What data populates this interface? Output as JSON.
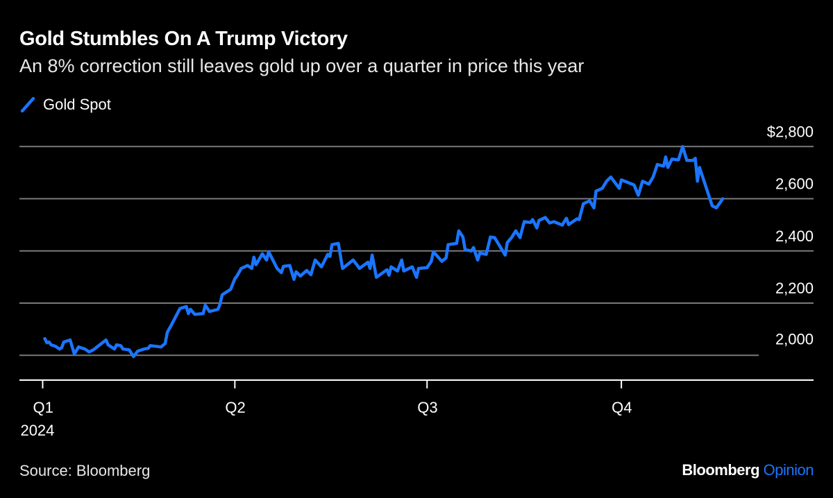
{
  "header": {
    "title": "Gold Stumbles On A Trump Victory",
    "subtitle": "An 8% correction still leaves gold up over a quarter in price this year"
  },
  "footer": {
    "source": "Source: Bloomberg",
    "brand": "Bloomberg",
    "brand_suffix": "Opinion"
  },
  "colors": {
    "line": "#1a75ff",
    "grid": "#7a7a7a",
    "axis": "#ffffff",
    "background": "#000000"
  },
  "chart_data": {
    "type": "line",
    "title": "Gold Stumbles On A Trump Victory",
    "subtitle": "An 8% correction still leaves gold up over a quarter in price this year",
    "legend_position": "top-left",
    "grid": true,
    "xlim": [
      "2023-12-21",
      "2024-12-31"
    ],
    "ylim": [
      1905,
      2830
    ],
    "y_axis_side": "right",
    "x_ticks": [
      {
        "date": "2024-01-01",
        "label": "Q1",
        "sublabel": "2024"
      },
      {
        "date": "2024-04-01",
        "label": "Q2"
      },
      {
        "date": "2024-07-01",
        "label": "Q3"
      },
      {
        "date": "2024-10-01",
        "label": "Q4"
      }
    ],
    "y_ticks": [
      {
        "value": 2000,
        "label": "2,000"
      },
      {
        "value": 2200,
        "label": "2,200"
      },
      {
        "value": 2400,
        "label": "2,400"
      },
      {
        "value": 2600,
        "label": "2,600"
      },
      {
        "value": 2800,
        "label": "$2,800"
      }
    ],
    "series": [
      {
        "name": "Gold Spot",
        "points": [
          [
            "2024-01-02",
            2064
          ],
          [
            "2024-01-03",
            2048
          ],
          [
            "2024-01-04",
            2051
          ],
          [
            "2024-01-05",
            2040
          ],
          [
            "2024-01-07",
            2035
          ],
          [
            "2024-01-09",
            2024
          ],
          [
            "2024-01-10",
            2029
          ],
          [
            "2024-01-11",
            2051
          ],
          [
            "2024-01-14",
            2059
          ],
          [
            "2024-01-16",
            2005
          ],
          [
            "2024-01-18",
            2032
          ],
          [
            "2024-01-21",
            2024
          ],
          [
            "2024-01-23",
            2013
          ],
          [
            "2024-01-25",
            2021
          ],
          [
            "2024-01-31",
            2059
          ],
          [
            "2024-02-01",
            2040
          ],
          [
            "2024-02-04",
            2024
          ],
          [
            "2024-02-05",
            2040
          ],
          [
            "2024-02-07",
            2037
          ],
          [
            "2024-02-08",
            2024
          ],
          [
            "2024-02-11",
            2021
          ],
          [
            "2024-02-13",
            1995
          ],
          [
            "2024-02-15",
            2016
          ],
          [
            "2024-02-18",
            2024
          ],
          [
            "2024-02-20",
            2027
          ],
          [
            "2024-02-21",
            2037
          ],
          [
            "2024-02-26",
            2032
          ],
          [
            "2024-02-28",
            2045
          ],
          [
            "2024-02-29",
            2088
          ],
          [
            "2024-03-02",
            2117
          ],
          [
            "2024-03-06",
            2179
          ],
          [
            "2024-03-09",
            2187
          ],
          [
            "2024-03-10",
            2160
          ],
          [
            "2024-03-11",
            2176
          ],
          [
            "2024-03-13",
            2157
          ],
          [
            "2024-03-17",
            2160
          ],
          [
            "2024-03-18",
            2192
          ],
          [
            "2024-03-20",
            2168
          ],
          [
            "2024-03-24",
            2176
          ],
          [
            "2024-03-25",
            2197
          ],
          [
            "2024-03-26",
            2232
          ],
          [
            "2024-03-30",
            2253
          ],
          [
            "2024-04-01",
            2293
          ],
          [
            "2024-04-02",
            2304
          ],
          [
            "2024-04-04",
            2333
          ],
          [
            "2024-04-07",
            2344
          ],
          [
            "2024-04-09",
            2333
          ],
          [
            "2024-04-10",
            2376
          ],
          [
            "2024-04-11",
            2347
          ],
          [
            "2024-04-14",
            2389
          ],
          [
            "2024-04-16",
            2365
          ],
          [
            "2024-04-17",
            2397
          ],
          [
            "2024-04-21",
            2333
          ],
          [
            "2024-04-23",
            2317
          ],
          [
            "2024-04-24",
            2341
          ],
          [
            "2024-04-27",
            2344
          ],
          [
            "2024-04-29",
            2291
          ],
          [
            "2024-04-30",
            2320
          ],
          [
            "2024-05-02",
            2304
          ],
          [
            "2024-05-05",
            2325
          ],
          [
            "2024-05-07",
            2309
          ],
          [
            "2024-05-09",
            2365
          ],
          [
            "2024-05-12",
            2339
          ],
          [
            "2024-05-15",
            2387
          ],
          [
            "2024-05-16",
            2379
          ],
          [
            "2024-05-17",
            2424
          ],
          [
            "2024-05-20",
            2429
          ],
          [
            "2024-05-22",
            2333
          ],
          [
            "2024-05-27",
            2365
          ],
          [
            "2024-05-29",
            2344
          ],
          [
            "2024-05-30",
            2333
          ],
          [
            "2024-06-03",
            2357
          ],
          [
            "2024-06-04",
            2333
          ],
          [
            "2024-06-05",
            2384
          ],
          [
            "2024-06-07",
            2299
          ],
          [
            "2024-06-12",
            2328
          ],
          [
            "2024-06-13",
            2307
          ],
          [
            "2024-06-14",
            2339
          ],
          [
            "2024-06-17",
            2323
          ],
          [
            "2024-06-19",
            2365
          ],
          [
            "2024-06-20",
            2323
          ],
          [
            "2024-06-24",
            2339
          ],
          [
            "2024-06-26",
            2299
          ],
          [
            "2024-06-27",
            2333
          ],
          [
            "2024-07-01",
            2336
          ],
          [
            "2024-07-03",
            2360
          ],
          [
            "2024-07-04",
            2397
          ],
          [
            "2024-07-08",
            2360
          ],
          [
            "2024-07-10",
            2373
          ],
          [
            "2024-07-11",
            2424
          ],
          [
            "2024-07-15",
            2429
          ],
          [
            "2024-07-16",
            2477
          ],
          [
            "2024-07-18",
            2453
          ],
          [
            "2024-07-19",
            2405
          ],
          [
            "2024-07-22",
            2400
          ],
          [
            "2024-07-23",
            2413
          ],
          [
            "2024-07-25",
            2365
          ],
          [
            "2024-07-26",
            2392
          ],
          [
            "2024-07-29",
            2387
          ],
          [
            "2024-07-31",
            2453
          ],
          [
            "2024-08-02",
            2451
          ],
          [
            "2024-08-07",
            2384
          ],
          [
            "2024-08-08",
            2432
          ],
          [
            "2024-08-10",
            2451
          ],
          [
            "2024-08-12",
            2477
          ],
          [
            "2024-08-14",
            2451
          ],
          [
            "2024-08-16",
            2512
          ],
          [
            "2024-08-19",
            2509
          ],
          [
            "2024-08-20",
            2520
          ],
          [
            "2024-08-22",
            2488
          ],
          [
            "2024-08-23",
            2517
          ],
          [
            "2024-08-26",
            2528
          ],
          [
            "2024-08-28",
            2507
          ],
          [
            "2024-08-30",
            2512
          ],
          [
            "2024-09-03",
            2499
          ],
          [
            "2024-09-05",
            2525
          ],
          [
            "2024-09-06",
            2501
          ],
          [
            "2024-09-10",
            2523
          ],
          [
            "2024-09-11",
            2520
          ],
          [
            "2024-09-13",
            2581
          ],
          [
            "2024-09-16",
            2592
          ],
          [
            "2024-09-18",
            2565
          ],
          [
            "2024-09-19",
            2629
          ],
          [
            "2024-09-22",
            2640
          ],
          [
            "2024-09-24",
            2667
          ],
          [
            "2024-09-26",
            2683
          ],
          [
            "2024-09-30",
            2640
          ],
          [
            "2024-10-01",
            2672
          ],
          [
            "2024-10-07",
            2653
          ],
          [
            "2024-10-09",
            2613
          ],
          [
            "2024-10-11",
            2667
          ],
          [
            "2024-10-14",
            2656
          ],
          [
            "2024-10-16",
            2683
          ],
          [
            "2024-10-18",
            2731
          ],
          [
            "2024-10-21",
            2725
          ],
          [
            "2024-10-22",
            2760
          ],
          [
            "2024-10-23",
            2720
          ],
          [
            "2024-10-25",
            2752
          ],
          [
            "2024-10-28",
            2749
          ],
          [
            "2024-10-30",
            2800
          ],
          [
            "2024-11-01",
            2747
          ],
          [
            "2024-11-04",
            2747
          ],
          [
            "2024-11-05",
            2755
          ],
          [
            "2024-11-06",
            2667
          ],
          [
            "2024-11-07",
            2720
          ],
          [
            "2024-11-13",
            2573
          ],
          [
            "2024-11-15",
            2565
          ],
          [
            "2024-11-18",
            2600
          ]
        ]
      }
    ]
  }
}
